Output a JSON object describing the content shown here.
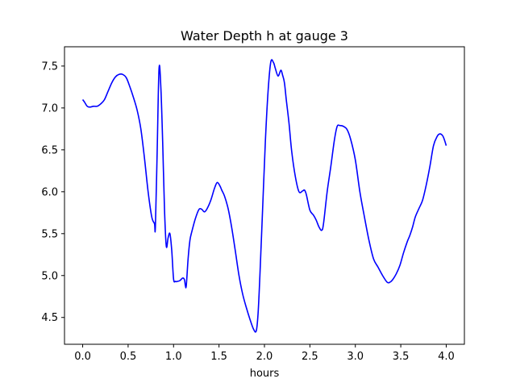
{
  "chart_data": {
    "type": "line",
    "title": "Water Depth h at gauge 3",
    "xlabel": "hours",
    "ylabel": "",
    "xlim": [
      -0.2,
      4.2
    ],
    "ylim": [
      4.18,
      7.73
    ],
    "xticks": [
      0.0,
      0.5,
      1.0,
      1.5,
      2.0,
      2.5,
      3.0,
      3.5,
      4.0
    ],
    "xtick_labels": [
      "0.0",
      "0.5",
      "1.0",
      "1.5",
      "2.0",
      "2.5",
      "3.0",
      "3.5",
      "4.0"
    ],
    "yticks": [
      4.5,
      5.0,
      5.5,
      6.0,
      6.5,
      7.0,
      7.5
    ],
    "ytick_labels": [
      "4.5",
      "5.0",
      "5.5",
      "6.0",
      "6.5",
      "7.0",
      "7.5"
    ],
    "grid": false,
    "colors": {
      "line": "#0000ff"
    },
    "series": [
      {
        "x": [
          0.0,
          0.02,
          0.05,
          0.08,
          0.12,
          0.16,
          0.2,
          0.24,
          0.28,
          0.32,
          0.36,
          0.4,
          0.44,
          0.48,
          0.52,
          0.56,
          0.6,
          0.64,
          0.68,
          0.72,
          0.76,
          0.79,
          0.8,
          0.82,
          0.84,
          0.86,
          0.88,
          0.9,
          0.92,
          0.94,
          0.96,
          0.98,
          1.0,
          1.02,
          1.04,
          1.07,
          1.1,
          1.12,
          1.13,
          1.14,
          1.16,
          1.18,
          1.2,
          1.24,
          1.28,
          1.31,
          1.34,
          1.37,
          1.41,
          1.45,
          1.48,
          1.51,
          1.53,
          1.56,
          1.6,
          1.64,
          1.68,
          1.72,
          1.76,
          1.8,
          1.84,
          1.88,
          1.91,
          1.93,
          1.95,
          1.98,
          2.01,
          2.04,
          2.07,
          2.1,
          2.12,
          2.15,
          2.18,
          2.2,
          2.22,
          2.24,
          2.27,
          2.3,
          2.34,
          2.38,
          2.42,
          2.44,
          2.46,
          2.5,
          2.54,
          2.57,
          2.6,
          2.63,
          2.65,
          2.69,
          2.73,
          2.77,
          2.8,
          2.83,
          2.87,
          2.91,
          2.95,
          3.0,
          3.05,
          3.1,
          3.15,
          3.2,
          3.25,
          3.3,
          3.35,
          3.38,
          3.41,
          3.45,
          3.49,
          3.53,
          3.57,
          3.6,
          3.63,
          3.66,
          3.7,
          3.74,
          3.78,
          3.82,
          3.86,
          3.9,
          3.93,
          3.96,
          3.98,
          4.0
        ],
        "y": [
          7.1,
          7.07,
          7.02,
          7.01,
          7.02,
          7.02,
          7.05,
          7.1,
          7.2,
          7.3,
          7.37,
          7.4,
          7.4,
          7.36,
          7.25,
          7.12,
          6.97,
          6.75,
          6.4,
          6.0,
          5.7,
          5.62,
          5.58,
          6.5,
          7.47,
          7.25,
          6.6,
          5.8,
          5.35,
          5.45,
          5.5,
          5.3,
          4.96,
          4.93,
          4.93,
          4.94,
          4.97,
          4.95,
          4.88,
          4.88,
          5.2,
          5.42,
          5.52,
          5.68,
          5.79,
          5.79,
          5.76,
          5.8,
          5.9,
          6.04,
          6.11,
          6.07,
          6.02,
          5.95,
          5.8,
          5.57,
          5.29,
          5.0,
          4.78,
          4.62,
          4.48,
          4.36,
          4.34,
          4.55,
          5.0,
          5.8,
          6.6,
          7.2,
          7.55,
          7.54,
          7.47,
          7.38,
          7.45,
          7.39,
          7.3,
          7.1,
          6.82,
          6.48,
          6.18,
          6.0,
          6.01,
          6.02,
          5.97,
          5.78,
          5.72,
          5.66,
          5.58,
          5.54,
          5.62,
          6.0,
          6.3,
          6.62,
          6.78,
          6.79,
          6.78,
          6.74,
          6.62,
          6.38,
          6.0,
          5.7,
          5.42,
          5.2,
          5.1,
          5.0,
          4.92,
          4.92,
          4.95,
          5.02,
          5.12,
          5.27,
          5.4,
          5.48,
          5.58,
          5.7,
          5.8,
          5.9,
          6.08,
          6.3,
          6.55,
          6.66,
          6.69,
          6.67,
          6.62,
          6.55
        ]
      }
    ]
  }
}
